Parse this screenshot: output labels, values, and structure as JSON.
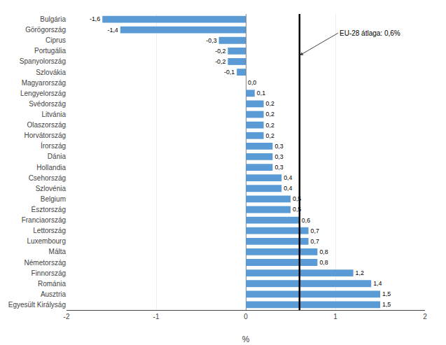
{
  "chart_data": {
    "type": "bar",
    "orientation": "horizontal",
    "categories": [
      "Bulgária",
      "Görögország",
      "Ciprus",
      "Portugália",
      "Spanyolország",
      "Szlovákia",
      "Magyarország",
      "Lengyelország",
      "Svédország",
      "Litvánia",
      "Olaszország",
      "Horvátország",
      "Írország",
      "Dánia",
      "Hollandia",
      "Csehország",
      "Szlovénia",
      "Belgium",
      "Észtország",
      "Franciaország",
      "Lettország",
      "Luxembourg",
      "Málta",
      "Németország",
      "Finnország",
      "Románia",
      "Ausztria",
      "Egyesült Királyság"
    ],
    "values": [
      -1.6,
      -1.4,
      -0.3,
      -0.2,
      -0.2,
      -0.1,
      0.0,
      0.1,
      0.2,
      0.2,
      0.2,
      0.2,
      0.3,
      0.3,
      0.3,
      0.4,
      0.4,
      0.5,
      0.5,
      0.6,
      0.7,
      0.7,
      0.8,
      0.8,
      1.2,
      1.4,
      1.5,
      1.5
    ],
    "value_labels": [
      "-1,6",
      "-1,4",
      "-0,3",
      "-0,2",
      "-0,2",
      "-0,1",
      "0,0",
      "0,1",
      "0,2",
      "0,2",
      "0,2",
      "0,2",
      "0,3",
      "0,3",
      "0,3",
      "0,4",
      "0,4",
      "0,5",
      "0,5",
      "0,6",
      "0,7",
      "0,7",
      "0,8",
      "0,8",
      "1,2",
      "1,4",
      "1,5",
      "1,5"
    ],
    "data_labels": true,
    "color": "#5B9BD5",
    "xlabel": "%",
    "xlim": [
      -2,
      2
    ],
    "xticks": [
      -2,
      -1,
      0,
      1,
      2
    ],
    "grid": true,
    "annotations": [
      {
        "text": "EU-28 átlaga: 0,6%",
        "x": 0.6
      }
    ]
  }
}
